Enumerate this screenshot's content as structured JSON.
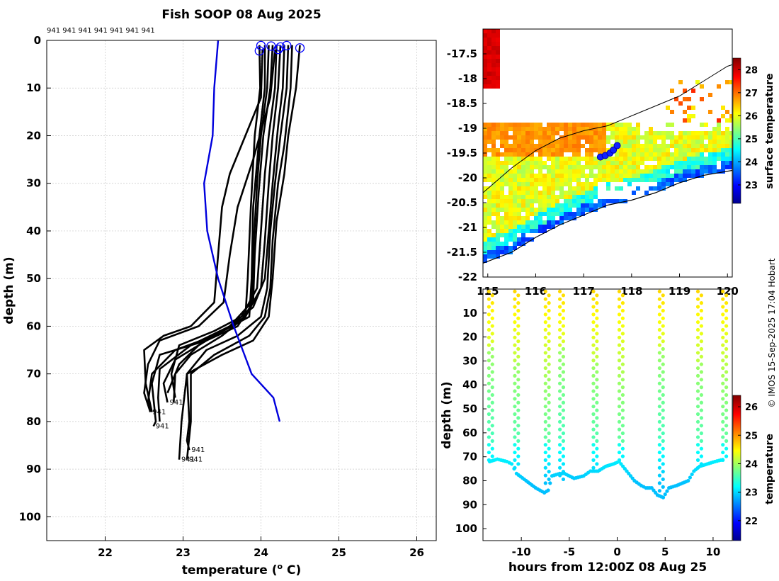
{
  "chart_data": [
    {
      "type": "line",
      "title": "Fish SOOP 08 Aug 2025",
      "xlabel": "temperature (o C)",
      "xlabel_parts": {
        "base": "temperature (",
        "sup": "o",
        "end": " C)"
      },
      "ylabel": "depth (m)",
      "xlim": [
        21.25,
        26.25
      ],
      "ylim": [
        105,
        0
      ],
      "xticks": [
        22,
        23,
        24,
        25,
        26
      ],
      "yticks": [
        0,
        10,
        20,
        30,
        40,
        50,
        60,
        70,
        80,
        90,
        100
      ],
      "grid": true,
      "top_label": "941 941 941 941 941 941 941",
      "climatology": {
        "color": "#0000dd",
        "points": [
          [
            23.45,
            0
          ],
          [
            23.4,
            10
          ],
          [
            23.38,
            20
          ],
          [
            23.27,
            30
          ],
          [
            23.31,
            40
          ],
          [
            23.45,
            50
          ],
          [
            23.65,
            60
          ],
          [
            23.88,
            70
          ],
          [
            24.16,
            75
          ],
          [
            24.24,
            80
          ]
        ]
      },
      "surface_markers": [
        [
          24.0,
          0.5
        ],
        [
          24.13,
          0.6
        ],
        [
          24.25,
          0.8
        ],
        [
          24.33,
          0.5
        ],
        [
          24.5,
          1.0
        ],
        [
          23.98,
          1.6
        ],
        [
          24.22,
          1.3
        ]
      ],
      "profiles": [
        {
          "color": "#000000",
          "label": "941",
          "points": [
            [
              23.98,
              1
            ],
            [
              23.99,
              10
            ],
            [
              23.92,
              20
            ],
            [
              23.87,
              35
            ],
            [
              23.83,
              50
            ],
            [
              23.8,
              58
            ],
            [
              23.3,
              63
            ],
            [
              22.7,
              66
            ],
            [
              22.6,
              72
            ],
            [
              22.65,
              80
            ],
            [
              22.62,
              81
            ]
          ]
        },
        {
          "color": "#000000",
          "label": "941",
          "points": [
            [
              24.05,
              1
            ],
            [
              24.05,
              10
            ],
            [
              23.98,
              20
            ],
            [
              23.9,
              35
            ],
            [
              23.88,
              50
            ],
            [
              23.85,
              58
            ],
            [
              23.4,
              62
            ],
            [
              22.9,
              65
            ],
            [
              22.6,
              70
            ],
            [
              22.55,
              76
            ],
            [
              22.58,
              78
            ]
          ]
        },
        {
          "color": "#000000",
          "label": "",
          "points": [
            [
              24.1,
              1
            ],
            [
              24.08,
              10
            ],
            [
              24.0,
              20
            ],
            [
              23.95,
              30
            ],
            [
              23.9,
              45
            ],
            [
              23.88,
              55
            ],
            [
              23.6,
              60
            ],
            [
              23.1,
              64
            ],
            [
              22.7,
              69
            ],
            [
              22.68,
              75
            ],
            [
              22.7,
              80
            ]
          ]
        },
        {
          "color": "#000000",
          "label": "941",
          "points": [
            [
              24.15,
              1
            ],
            [
              24.12,
              10
            ],
            [
              24.03,
              20
            ],
            [
              23.97,
              32
            ],
            [
              23.92,
              45
            ],
            [
              23.9,
              55
            ],
            [
              23.7,
              60
            ],
            [
              23.3,
              63
            ],
            [
              22.9,
              67
            ],
            [
              22.75,
              72
            ],
            [
              22.8,
              76
            ]
          ]
        },
        {
          "color": "#000000",
          "label": "",
          "points": [
            [
              24.2,
              1
            ],
            [
              24.18,
              10
            ],
            [
              24.1,
              20
            ],
            [
              24.05,
              28
            ],
            [
              24.0,
              40
            ],
            [
              23.95,
              52
            ],
            [
              23.75,
              58
            ],
            [
              23.4,
              61
            ],
            [
              22.95,
              64
            ],
            [
              22.85,
              70
            ],
            [
              22.9,
              75
            ]
          ]
        },
        {
          "color": "#000000",
          "label": "",
          "points": [
            [
              24.25,
              1
            ],
            [
              24.22,
              10
            ],
            [
              24.15,
              20
            ],
            [
              24.1,
              30
            ],
            [
              24.05,
              42
            ],
            [
              24.0,
              52
            ],
            [
              23.8,
              58
            ],
            [
              23.5,
              62
            ],
            [
              23.1,
              66
            ],
            [
              22.9,
              70
            ],
            [
              22.88,
              76
            ]
          ]
        },
        {
          "color": "#000000",
          "label": "",
          "points": [
            [
              24.3,
              1
            ],
            [
              24.28,
              10
            ],
            [
              24.22,
              18
            ],
            [
              24.15,
              30
            ],
            [
              24.1,
              40
            ],
            [
              24.05,
              50
            ],
            [
              23.9,
              56
            ],
            [
              23.6,
              60
            ],
            [
              23.2,
              64
            ],
            [
              22.95,
              68
            ],
            [
              22.8,
              74
            ]
          ]
        },
        {
          "color": "#000000",
          "label": "941",
          "points": [
            [
              24.35,
              1
            ],
            [
              24.33,
              10
            ],
            [
              24.25,
              20
            ],
            [
              24.18,
              30
            ],
            [
              24.12,
              40
            ],
            [
              24.08,
              52
            ],
            [
              24.0,
              58
            ],
            [
              23.7,
              62
            ],
            [
              23.3,
              65
            ],
            [
              23.05,
              70
            ],
            [
              23.08,
              80
            ],
            [
              23.05,
              84
            ],
            [
              23.08,
              86
            ]
          ]
        },
        {
          "color": "#000000",
          "label": "941",
          "points": [
            [
              24.4,
              1
            ],
            [
              24.38,
              10
            ],
            [
              24.3,
              22
            ],
            [
              24.22,
              30
            ],
            [
              24.15,
              42
            ],
            [
              24.12,
              52
            ],
            [
              24.05,
              58
            ],
            [
              23.85,
              62
            ],
            [
              23.4,
              66
            ],
            [
              23.1,
              70
            ],
            [
              23.1,
              80
            ],
            [
              23.05,
              88
            ]
          ]
        },
        {
          "color": "#000000",
          "label": "941",
          "points": [
            [
              24.5,
              1
            ],
            [
              24.45,
              10
            ],
            [
              24.35,
              20
            ],
            [
              24.3,
              28
            ],
            [
              24.2,
              38
            ],
            [
              24.15,
              50
            ],
            [
              24.1,
              58
            ],
            [
              23.9,
              63
            ],
            [
              23.5,
              66
            ],
            [
              23.05,
              70
            ],
            [
              22.98,
              80
            ],
            [
              22.95,
              88
            ]
          ]
        },
        {
          "color": "#000000",
          "label": "",
          "points": [
            [
              24.02,
              2
            ],
            [
              24.0,
              12
            ],
            [
              23.6,
              28
            ],
            [
              23.5,
              35
            ],
            [
              23.45,
              45
            ],
            [
              23.4,
              55
            ],
            [
              23.1,
              60
            ],
            [
              22.75,
              62
            ],
            [
              22.5,
              65
            ],
            [
              22.52,
              72
            ],
            [
              22.6,
              78
            ]
          ]
        },
        {
          "color": "#000000",
          "label": "",
          "points": [
            [
              24.18,
              2
            ],
            [
              24.12,
              12
            ],
            [
              23.9,
              25
            ],
            [
              23.7,
              35
            ],
            [
              23.6,
              45
            ],
            [
              23.52,
              55
            ],
            [
              23.2,
              60
            ],
            [
              22.7,
              63
            ],
            [
              22.55,
              68
            ],
            [
              22.5,
              74
            ],
            [
              22.58,
              78
            ]
          ]
        }
      ]
    },
    {
      "type": "heatmap",
      "title": "",
      "xlabel": "",
      "ylabel": "",
      "xlim": [
        114.9,
        120.1
      ],
      "ylim": [
        -22,
        -17.0
      ],
      "xticks": [
        115,
        116,
        117,
        118,
        119,
        120
      ],
      "xtick_labels": [
        "115",
        "116",
        "117",
        "118",
        "119",
        "120"
      ],
      "yticks": [
        -17.5,
        -18,
        -18.5,
        -19,
        -19.5,
        -20,
        -20.5,
        -21,
        -21.5,
        -22
      ],
      "ytick_labels": [
        "-17.5",
        "-18",
        "-18.5",
        "-19",
        "-19.5",
        "-20",
        "-20.5",
        "-21",
        "-21.5",
        "-22"
      ],
      "colorbar": {
        "label": "surface temperature",
        "min": 22.2,
        "max": 28.5,
        "ticks": [
          23,
          24,
          25,
          26,
          27,
          28
        ]
      },
      "coast": [
        [
          114.9,
          -21.72
        ],
        [
          115.5,
          -21.5
        ],
        [
          116.0,
          -21.2
        ],
        [
          116.5,
          -20.95
        ],
        [
          117.0,
          -20.75
        ],
        [
          117.5,
          -20.55
        ],
        [
          118.0,
          -20.45
        ],
        [
          118.5,
          -20.3
        ],
        [
          119.0,
          -20.1
        ],
        [
          119.5,
          -19.95
        ],
        [
          120.1,
          -19.85
        ]
      ],
      "isobath": [
        [
          114.9,
          -20.3
        ],
        [
          115.5,
          -19.8
        ],
        [
          116.0,
          -19.45
        ],
        [
          116.5,
          -19.2
        ],
        [
          117.0,
          -19.05
        ],
        [
          117.5,
          -18.95
        ],
        [
          118.0,
          -18.75
        ],
        [
          118.5,
          -18.55
        ],
        [
          119.0,
          -18.35
        ],
        [
          119.5,
          -18.05
        ],
        [
          120.0,
          -17.75
        ],
        [
          120.1,
          -17.72
        ]
      ],
      "track": [
        [
          117.35,
          -19.58
        ],
        [
          117.45,
          -19.55
        ],
        [
          117.55,
          -19.5
        ],
        [
          117.62,
          -19.44
        ],
        [
          117.7,
          -19.35
        ]
      ]
    },
    {
      "type": "scatter",
      "title": "",
      "xlabel": "hours from 12:00Z 08 Aug 25",
      "ylabel": "depth (m)",
      "xlim": [
        -14,
        12
      ],
      "ylim": [
        105,
        0
      ],
      "xticks": [
        -10,
        -5,
        0,
        5,
        10
      ],
      "xtick_labels": [
        "-10",
        "-5",
        "0",
        "5",
        "10"
      ],
      "yticks": [
        10,
        20,
        30,
        40,
        50,
        60,
        70,
        80,
        90,
        100
      ],
      "colorbar": {
        "label": "temperature",
        "min": 21.3,
        "max": 26.4,
        "ticks": [
          22,
          23,
          24,
          25,
          26
        ]
      },
      "casts": [
        {
          "hour": -13.2,
          "max_depth": 72
        },
        {
          "hour": -10.5,
          "max_depth": 75
        },
        {
          "hour": -7.3,
          "max_depth": 82
        },
        {
          "hour": -5.8,
          "max_depth": 80
        },
        {
          "hour": -2.3,
          "max_depth": 76
        },
        {
          "hour": 0.4,
          "max_depth": 73
        },
        {
          "hour": 4.6,
          "max_depth": 85
        },
        {
          "hour": 8.6,
          "max_depth": 76
        },
        {
          "hour": 11.2,
          "max_depth": 72
        }
      ],
      "bottom_trace": [
        [
          -13.3,
          72
        ],
        [
          -12.5,
          71
        ],
        [
          -11.5,
          72
        ],
        [
          -11,
          73
        ],
        [
          -10.5,
          77
        ],
        [
          -9.5,
          80
        ],
        [
          -8.5,
          83
        ],
        [
          -7.6,
          85
        ],
        [
          -7.2,
          84
        ],
        [
          -6.8,
          78
        ],
        [
          -6,
          77
        ],
        [
          -5.5,
          77
        ],
        [
          -4.5,
          79
        ],
        [
          -3.5,
          78
        ],
        [
          -2.8,
          76
        ],
        [
          -2,
          76
        ],
        [
          -1.2,
          74
        ],
        [
          -0.4,
          73
        ],
        [
          0.2,
          72
        ],
        [
          0.8,
          75
        ],
        [
          1.2,
          77
        ],
        [
          1.8,
          80
        ],
        [
          2.5,
          82
        ],
        [
          3,
          83
        ],
        [
          3.6,
          83
        ],
        [
          4.2,
          86
        ],
        [
          4.8,
          87
        ],
        [
          5.4,
          83
        ],
        [
          6.2,
          82
        ],
        [
          6.8,
          81
        ],
        [
          7.4,
          80
        ],
        [
          8.0,
          76
        ],
        [
          8.6,
          74
        ],
        [
          9.4,
          73
        ],
        [
          10.2,
          72
        ],
        [
          11.2,
          71
        ]
      ]
    }
  ],
  "credit": "© IMOS 15-Sep-2025 17:04 Hobart"
}
